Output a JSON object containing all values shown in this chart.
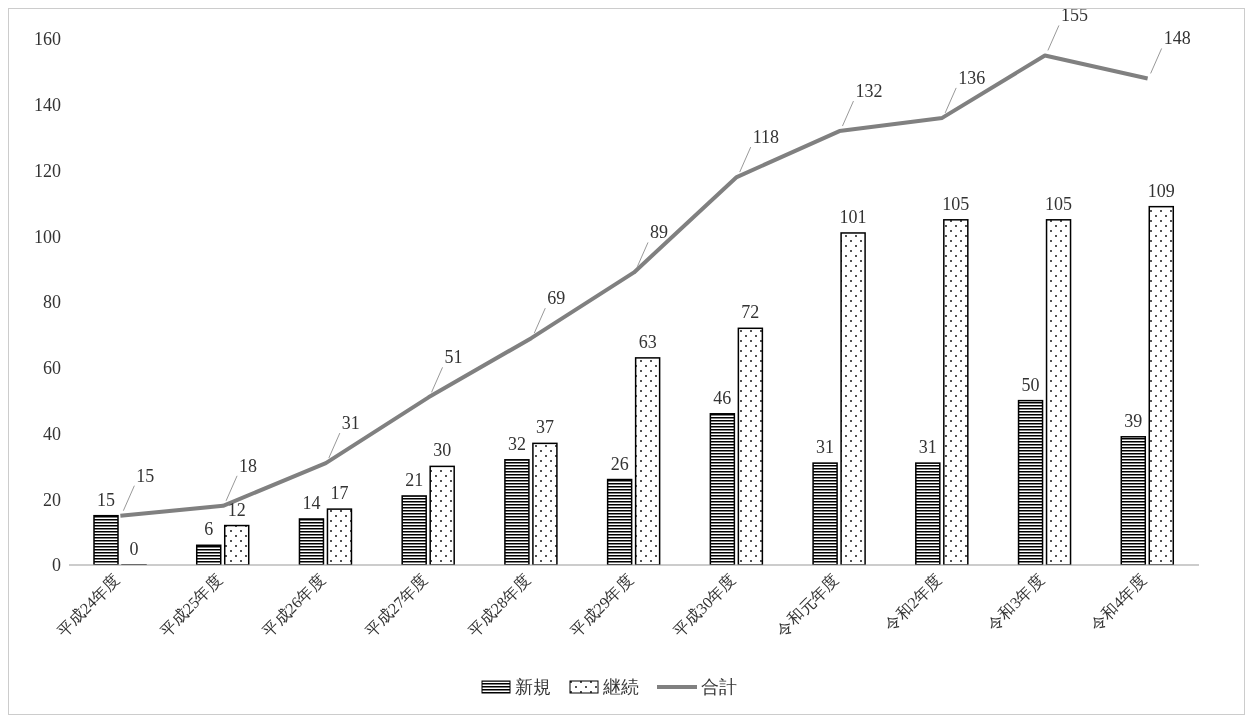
{
  "chart_data": {
    "type": "bar",
    "categories": [
      "平成24年度",
      "平成25年度",
      "平成26年度",
      "平成27年度",
      "平成28年度",
      "平成29年度",
      "平成30年度",
      "令和元年度",
      "令和2年度",
      "令和3年度",
      "令和4年度"
    ],
    "series": [
      {
        "name": "新規",
        "color": "#000000",
        "values": [
          15,
          6,
          14,
          21,
          32,
          26,
          46,
          31,
          31,
          50,
          39
        ]
      },
      {
        "name": "継続",
        "color": "#000000",
        "values": [
          0,
          12,
          17,
          30,
          37,
          63,
          72,
          101,
          105,
          105,
          109
        ]
      },
      {
        "name": "合計",
        "type": "line",
        "color": "#808080",
        "values": [
          15,
          18,
          31,
          51,
          69,
          89,
          118,
          132,
          136,
          155,
          148
        ]
      }
    ],
    "ylim": [
      0,
      160
    ],
    "yticks": [
      0,
      20,
      40,
      60,
      80,
      100,
      120,
      140,
      160
    ],
    "grid": false,
    "legend": "bottom",
    "data_labels": true,
    "marker": "none",
    "line_style": "solid"
  }
}
